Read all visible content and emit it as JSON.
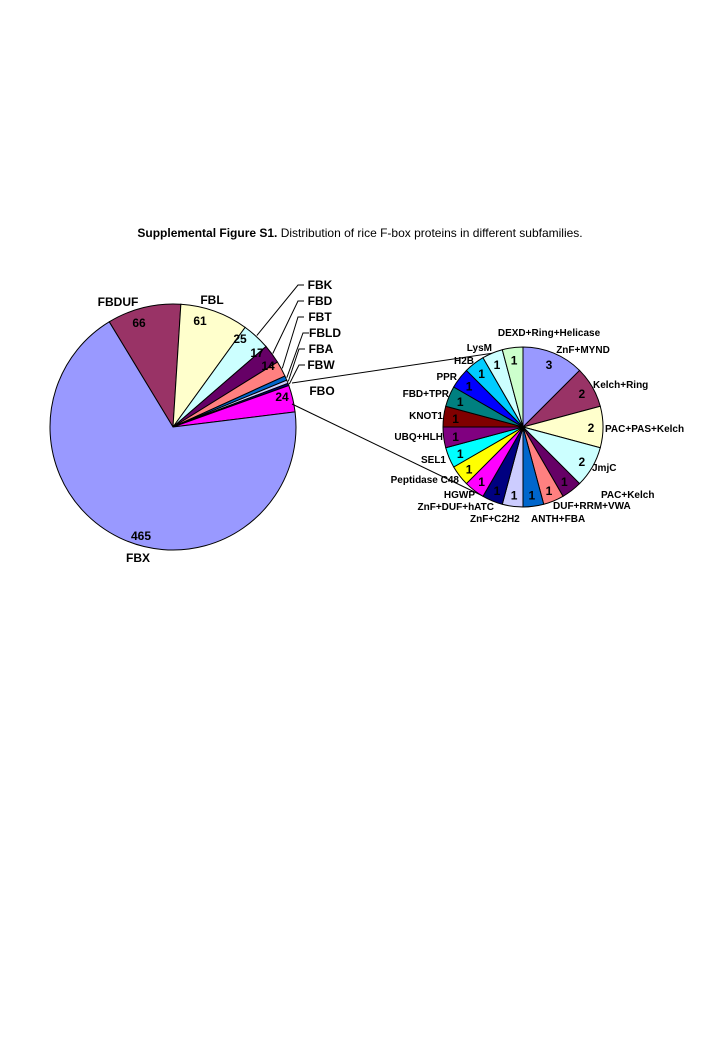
{
  "caption": {
    "bold": "Supplemental Figure S1.",
    "text": " Distribution of rice F-box proteins in different subfamilies."
  },
  "chart_data": [
    {
      "type": "pie",
      "title": "",
      "slices": [
        {
          "label": "FBX",
          "value": 465,
          "color": "#9999FF"
        },
        {
          "label": "FBDUF",
          "value": 66,
          "color": "#993366"
        },
        {
          "label": "FBL",
          "value": 61,
          "color": "#FFFFCC"
        },
        {
          "label": "FBK",
          "value": 25,
          "color": "#CCFFFF"
        },
        {
          "label": "FBD",
          "value": 17,
          "color": "#660066"
        },
        {
          "label": "FBT",
          "value": 14,
          "color": "#FF8080"
        },
        {
          "label": "FBLD",
          "value": 4,
          "color": "#0066CC"
        },
        {
          "label": "FBA",
          "value": 3,
          "color": "#CCCCFF"
        },
        {
          "label": "FBW",
          "value": 2,
          "color": "#000080"
        },
        {
          "label": "FBO",
          "value": 24,
          "color": "#FF00FF"
        }
      ]
    },
    {
      "type": "pie",
      "title": "",
      "slices": [
        {
          "label": "ZnF+MYND",
          "value": 3,
          "color": "#9999FF"
        },
        {
          "label": "Kelch+Ring",
          "value": 2,
          "color": "#993366"
        },
        {
          "label": "PAC+PAS+Kelch",
          "value": 2,
          "color": "#FFFFCC"
        },
        {
          "label": "JmjC",
          "value": 2,
          "color": "#CCFFFF"
        },
        {
          "label": "PAC+Kelch",
          "value": 1,
          "color": "#660066"
        },
        {
          "label": "DUF+RRM+VWA",
          "value": 1,
          "color": "#FF8080"
        },
        {
          "label": "ANTH+FBA",
          "value": 1,
          "color": "#0066CC"
        },
        {
          "label": "ZnF+C2H2",
          "value": 1,
          "color": "#CCCCFF"
        },
        {
          "label": "ZnF+DUF+hATC",
          "value": 1,
          "color": "#000080"
        },
        {
          "label": "HGWP",
          "value": 1,
          "color": "#FF00FF"
        },
        {
          "label": "Peptidase C48",
          "value": 1,
          "color": "#FFFF00"
        },
        {
          "label": "SEL1",
          "value": 1,
          "color": "#00FFFF"
        },
        {
          "label": "UBQ+HLH",
          "value": 1,
          "color": "#800080"
        },
        {
          "label": "KNOT1",
          "value": 1,
          "color": "#800000"
        },
        {
          "label": "FBD+TPR",
          "value": 1,
          "color": "#008080"
        },
        {
          "label": "PPR",
          "value": 1,
          "color": "#0000FF"
        },
        {
          "label": "H2B",
          "value": 1,
          "color": "#00CCFF"
        },
        {
          "label": "LysM",
          "value": 1,
          "color": "#CCFFFF"
        },
        {
          "label": "DEXD+Ring+Helicase",
          "value": 1,
          "color": "#CCFFCC"
        }
      ]
    }
  ]
}
